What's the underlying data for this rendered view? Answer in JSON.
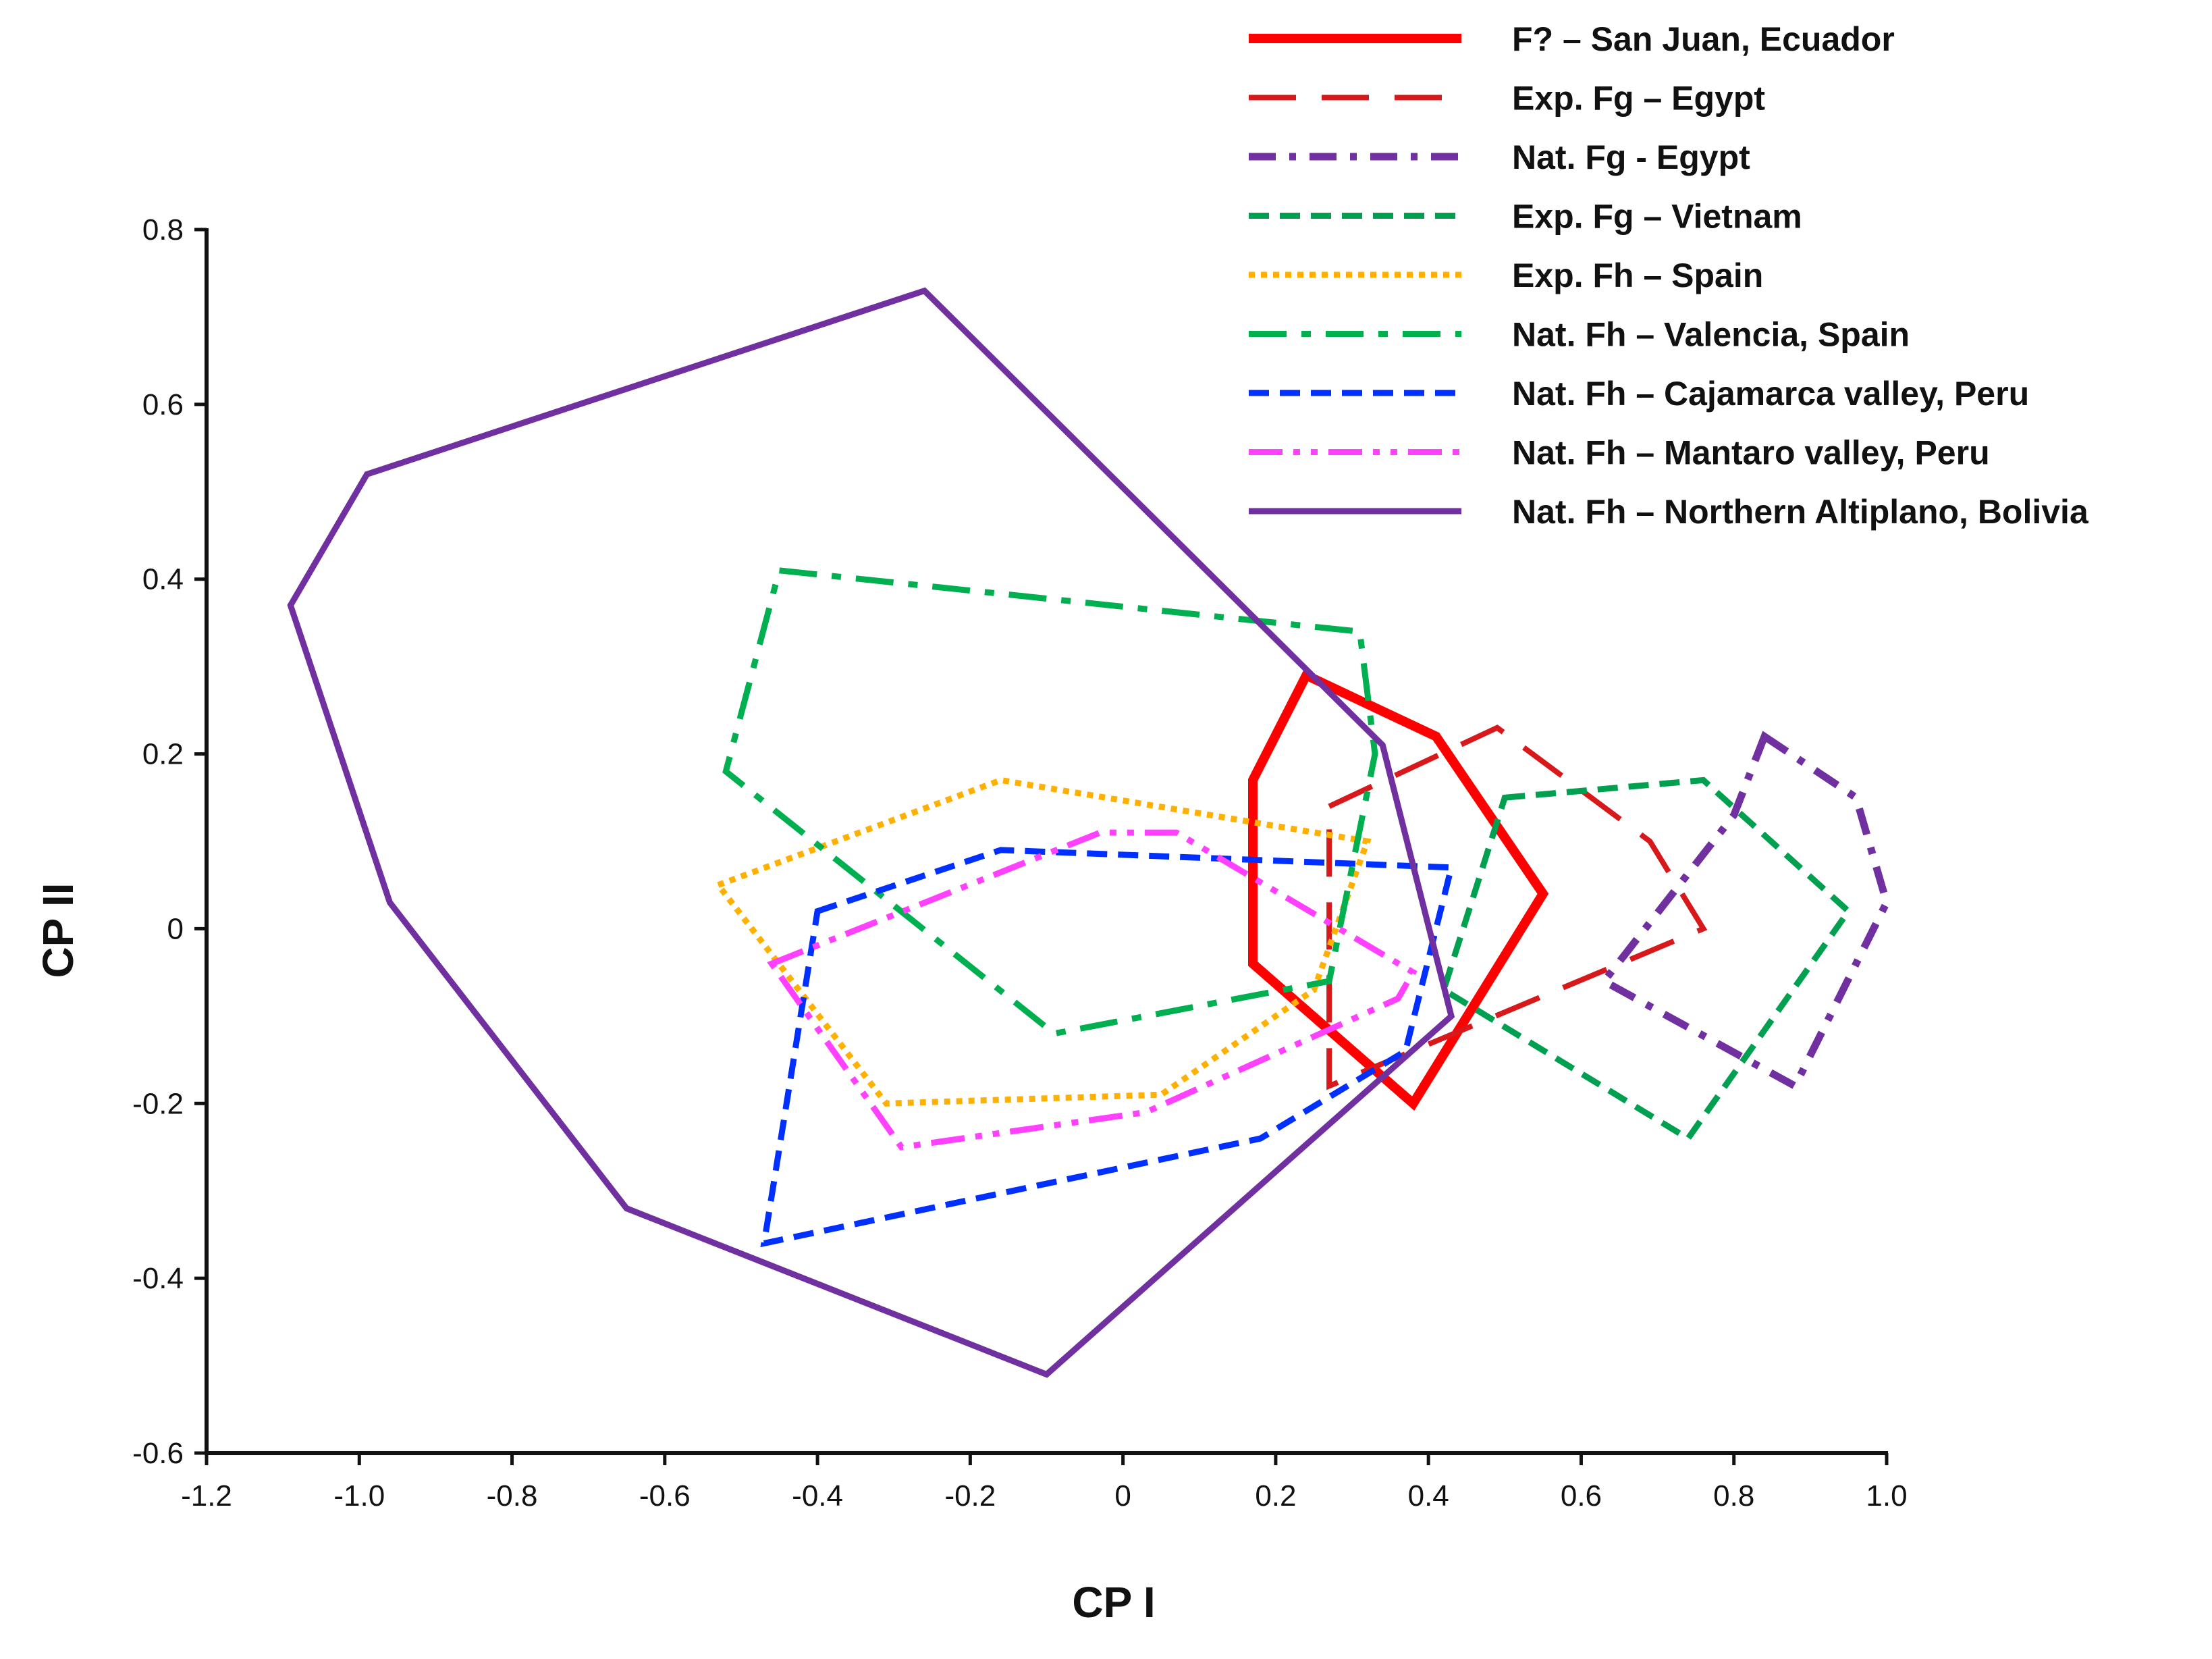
{
  "chart_data": {
    "type": "scatter",
    "plot_style": "convex-hull polygons",
    "title": "",
    "xlabel": "CP I",
    "ylabel": "CP II",
    "xlim": [
      -1.2,
      1.0
    ],
    "ylim": [
      -0.6,
      0.8
    ],
    "x_ticks": [
      "-1.2",
      "-1.0",
      "-0.8",
      "-0.6",
      "-0.4",
      "-0.2",
      "0",
      "0.2",
      "0.4",
      "0.6",
      "0.8",
      "1.0"
    ],
    "y_ticks": [
      "0.8",
      "0.6",
      "0.4",
      "0.2",
      "0",
      "-0.2",
      "-0.4",
      "-0.6"
    ],
    "grid": false,
    "legend_position": "top-right",
    "series": [
      {
        "name": "F? – San Juan, Ecuador",
        "color": "#ff0000",
        "style": "solid-thick",
        "points": [
          [
            0.24,
            0.29
          ],
          [
            0.41,
            0.22
          ],
          [
            0.55,
            0.04
          ],
          [
            0.38,
            -0.2
          ],
          [
            0.17,
            -0.04
          ],
          [
            0.17,
            0.17
          ]
        ]
      },
      {
        "name": "Exp. Fg – Egypt",
        "color": "#d7191c",
        "style": "long-dash",
        "points": [
          [
            0.27,
            0.14
          ],
          [
            0.49,
            0.23
          ],
          [
            0.69,
            0.1
          ],
          [
            0.76,
            0.0
          ],
          [
            0.27,
            -0.18
          ]
        ]
      },
      {
        "name": "Nat. Fg - Egypt",
        "color": "#7030a0",
        "style": "dash-dot",
        "points": [
          [
            0.84,
            0.22
          ],
          [
            0.96,
            0.15
          ],
          [
            1.0,
            0.03
          ],
          [
            0.88,
            -0.18
          ],
          [
            0.63,
            -0.06
          ],
          [
            0.8,
            0.13
          ]
        ]
      },
      {
        "name": "Exp. Fg – Vietnam",
        "color": "#00a050",
        "style": "dash",
        "points": [
          [
            0.5,
            0.15
          ],
          [
            0.76,
            0.17
          ],
          [
            0.95,
            0.02
          ],
          [
            0.74,
            -0.24
          ],
          [
            0.42,
            -0.07
          ]
        ]
      },
      {
        "name": "Exp. Fh – Spain",
        "color": "#ffb000",
        "style": "dotted",
        "points": [
          [
            -0.53,
            0.05
          ],
          [
            -0.16,
            0.17
          ],
          [
            0.32,
            0.1
          ],
          [
            0.25,
            -0.07
          ],
          [
            0.05,
            -0.19
          ],
          [
            -0.31,
            -0.2
          ]
        ]
      },
      {
        "name": "Nat. Fh – Valencia, Spain",
        "color": "#00b050",
        "style": "long-dash-dot",
        "points": [
          [
            -0.45,
            0.41
          ],
          [
            0.31,
            0.34
          ],
          [
            0.33,
            0.2
          ],
          [
            0.27,
            -0.06
          ],
          [
            -0.09,
            -0.12
          ],
          [
            -0.52,
            0.18
          ]
        ]
      },
      {
        "name": "Nat. Fh – Cajamarca valley, Peru",
        "color": "#0030ff",
        "style": "dash",
        "points": [
          [
            -0.4,
            0.02
          ],
          [
            -0.16,
            0.09
          ],
          [
            0.43,
            0.07
          ],
          [
            0.37,
            -0.14
          ],
          [
            0.18,
            -0.24
          ],
          [
            -0.47,
            -0.36
          ]
        ]
      },
      {
        "name": "Nat. Fh – Mantaro valley, Peru",
        "color": "#ff40ff",
        "style": "dash-dot-dot",
        "points": [
          [
            -0.46,
            -0.04
          ],
          [
            -0.03,
            0.11
          ],
          [
            0.07,
            0.11
          ],
          [
            0.38,
            -0.05
          ],
          [
            0.36,
            -0.08
          ],
          [
            0.03,
            -0.21
          ],
          [
            -0.29,
            -0.25
          ]
        ]
      },
      {
        "name": "Nat. Fh – Northern Altiplano, Bolivia",
        "color": "#7030a0",
        "style": "solid",
        "points": [
          [
            -0.99,
            0.52
          ],
          [
            -0.26,
            0.73
          ],
          [
            0.34,
            0.21
          ],
          [
            0.43,
            -0.1
          ],
          [
            -0.1,
            -0.51
          ],
          [
            -0.65,
            -0.32
          ],
          [
            -0.96,
            0.03
          ],
          [
            -1.09,
            0.37
          ]
        ]
      }
    ]
  }
}
